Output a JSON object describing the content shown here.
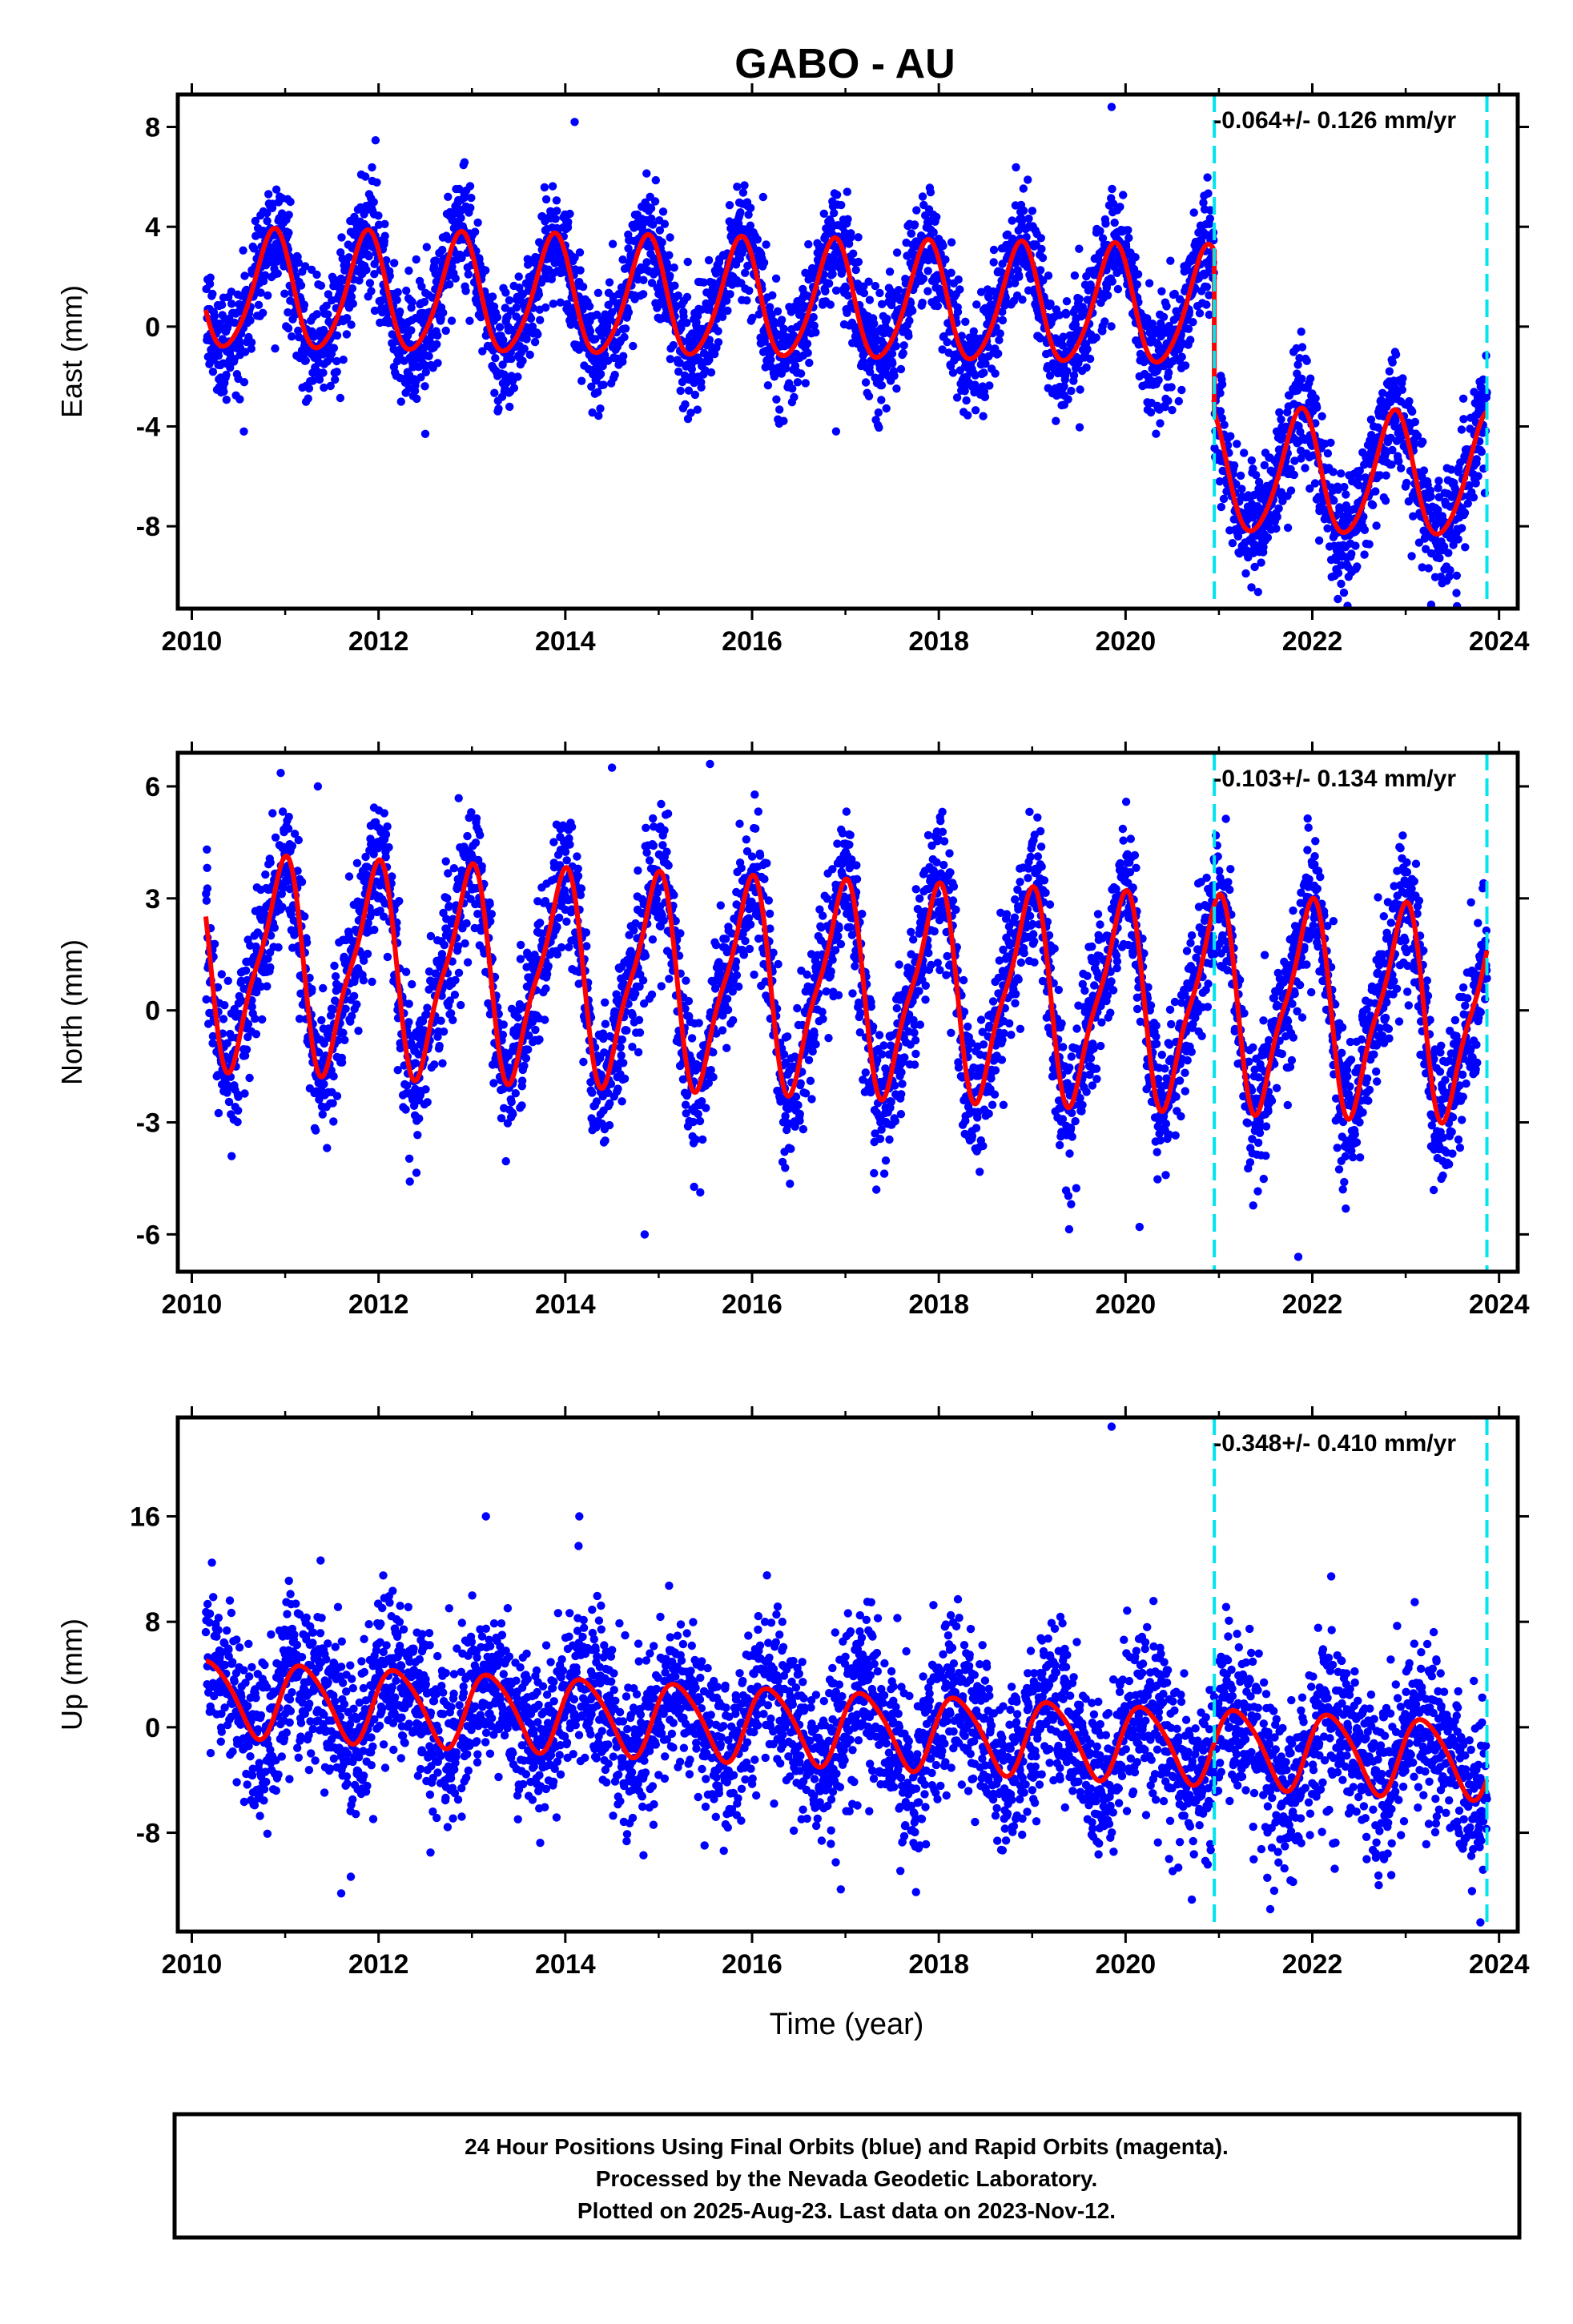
{
  "title": "GABO - AU",
  "xlabel": "Time (year)",
  "footer": {
    "lines": [
      "24 Hour Positions Using Final Orbits (blue) and Rapid Orbits (magenta).",
      "Processed by the Nevada Geodetic Laboratory.",
      "Plotted on 2025-Aug-23. Last data on 2023-Nov-12."
    ]
  },
  "colors": {
    "points": "#0000ff",
    "fit": "#ff0000",
    "event": "#00e5ee",
    "frame": "#000000"
  },
  "chart_data": [
    {
      "type": "scatter",
      "ylabel": "East (mm)",
      "rate_label": "-0.064+/- 0.126 mm/yr",
      "xlim": [
        2009.85,
        2024.2
      ],
      "ylim": [
        -11.3,
        9.3
      ],
      "xticks": [
        2010,
        2012,
        2014,
        2016,
        2018,
        2020,
        2022,
        2024
      ],
      "yticks": [
        8,
        4,
        0,
        -4,
        -8
      ],
      "events": [
        2020.95,
        2023.87
      ],
      "data_range": [
        2010.15,
        2023.87
      ],
      "model": {
        "segments": [
          {
            "start": 2010.15,
            "end": 2020.95,
            "offset": 1.4,
            "rate": -0.064,
            "amp1": 2.35,
            "phase1": -0.62,
            "amp2": 0.3,
            "phase2": 0.2
          },
          {
            "start": 2020.95,
            "end": 2023.87,
            "offset": -5.2,
            "rate": -0.064,
            "amp1": 2.45,
            "phase1": -0.62,
            "amp2": 0.3,
            "phase2": 0.2
          }
        ],
        "noise_sd": 1.15,
        "outliers": [
          [
            2014.1,
            8.2
          ],
          [
            2019.85,
            8.8
          ],
          [
            2023.55,
            -11.2
          ],
          [
            2016.9,
            -4.2
          ],
          [
            2012.5,
            -4.3
          ]
        ]
      }
    },
    {
      "type": "scatter",
      "ylabel": "North (mm)",
      "rate_label": "-0.103+/- 0.134 mm/yr",
      "xlim": [
        2009.85,
        2024.2
      ],
      "ylim": [
        -7.0,
        6.9
      ],
      "xticks": [
        2010,
        2012,
        2014,
        2016,
        2018,
        2020,
        2022,
        2024
      ],
      "yticks": [
        6,
        3,
        0,
        -3,
        -6
      ],
      "events": [
        2020.95,
        2023.87
      ],
      "data_range": [
        2010.15,
        2023.87
      ],
      "model": {
        "segments": [
          {
            "start": 2010.15,
            "end": 2023.87,
            "offset": 1.3,
            "rate": -0.103,
            "amp1": 2.65,
            "phase1": 0.3,
            "amp2": 0.7,
            "phase2": 0.55
          }
        ],
        "noise_sd": 0.95,
        "outliers": [
          [
            2014.5,
            6.5
          ],
          [
            2015.55,
            6.6
          ],
          [
            2014.85,
            -6.0
          ],
          [
            2020.15,
            -5.8
          ],
          [
            2021.85,
            -6.6
          ],
          [
            2011.35,
            6.0
          ]
        ]
      }
    },
    {
      "type": "scatter",
      "ylabel": "Up (mm)",
      "rate_label": "-0.348+/- 0.410 mm/yr",
      "xlim": [
        2009.85,
        2024.2
      ],
      "ylim": [
        -15.5,
        23.5
      ],
      "xticks": [
        2010,
        2012,
        2014,
        2016,
        2018,
        2020,
        2022,
        2024
      ],
      "yticks": [
        16,
        8,
        0,
        -8
      ],
      "events": [
        2020.95,
        2023.87
      ],
      "data_range": [
        2010.15,
        2023.87
      ],
      "model": {
        "segments": [
          {
            "start": 2010.15,
            "end": 2020.95,
            "offset": 2.4,
            "rate": -0.348,
            "amp1": 2.8,
            "phase1": 0.05,
            "amp2": 0.4,
            "phase2": 0.1
          },
          {
            "start": 2020.95,
            "end": 2023.87,
            "offset": 2.4,
            "rate": -0.348,
            "amp1": 2.9,
            "phase1": 0.05,
            "amp2": 0.4,
            "phase2": 0.1
          }
        ],
        "noise_sd": 3.1,
        "outliers": [
          [
            2019.85,
            22.8
          ],
          [
            2011.6,
            -12.6
          ],
          [
            2016.95,
            -12.3
          ],
          [
            2023.8,
            -14.8
          ],
          [
            2021.55,
            -13.8
          ],
          [
            2014.15,
            16.0
          ],
          [
            2013.15,
            16.0
          ]
        ]
      }
    }
  ]
}
